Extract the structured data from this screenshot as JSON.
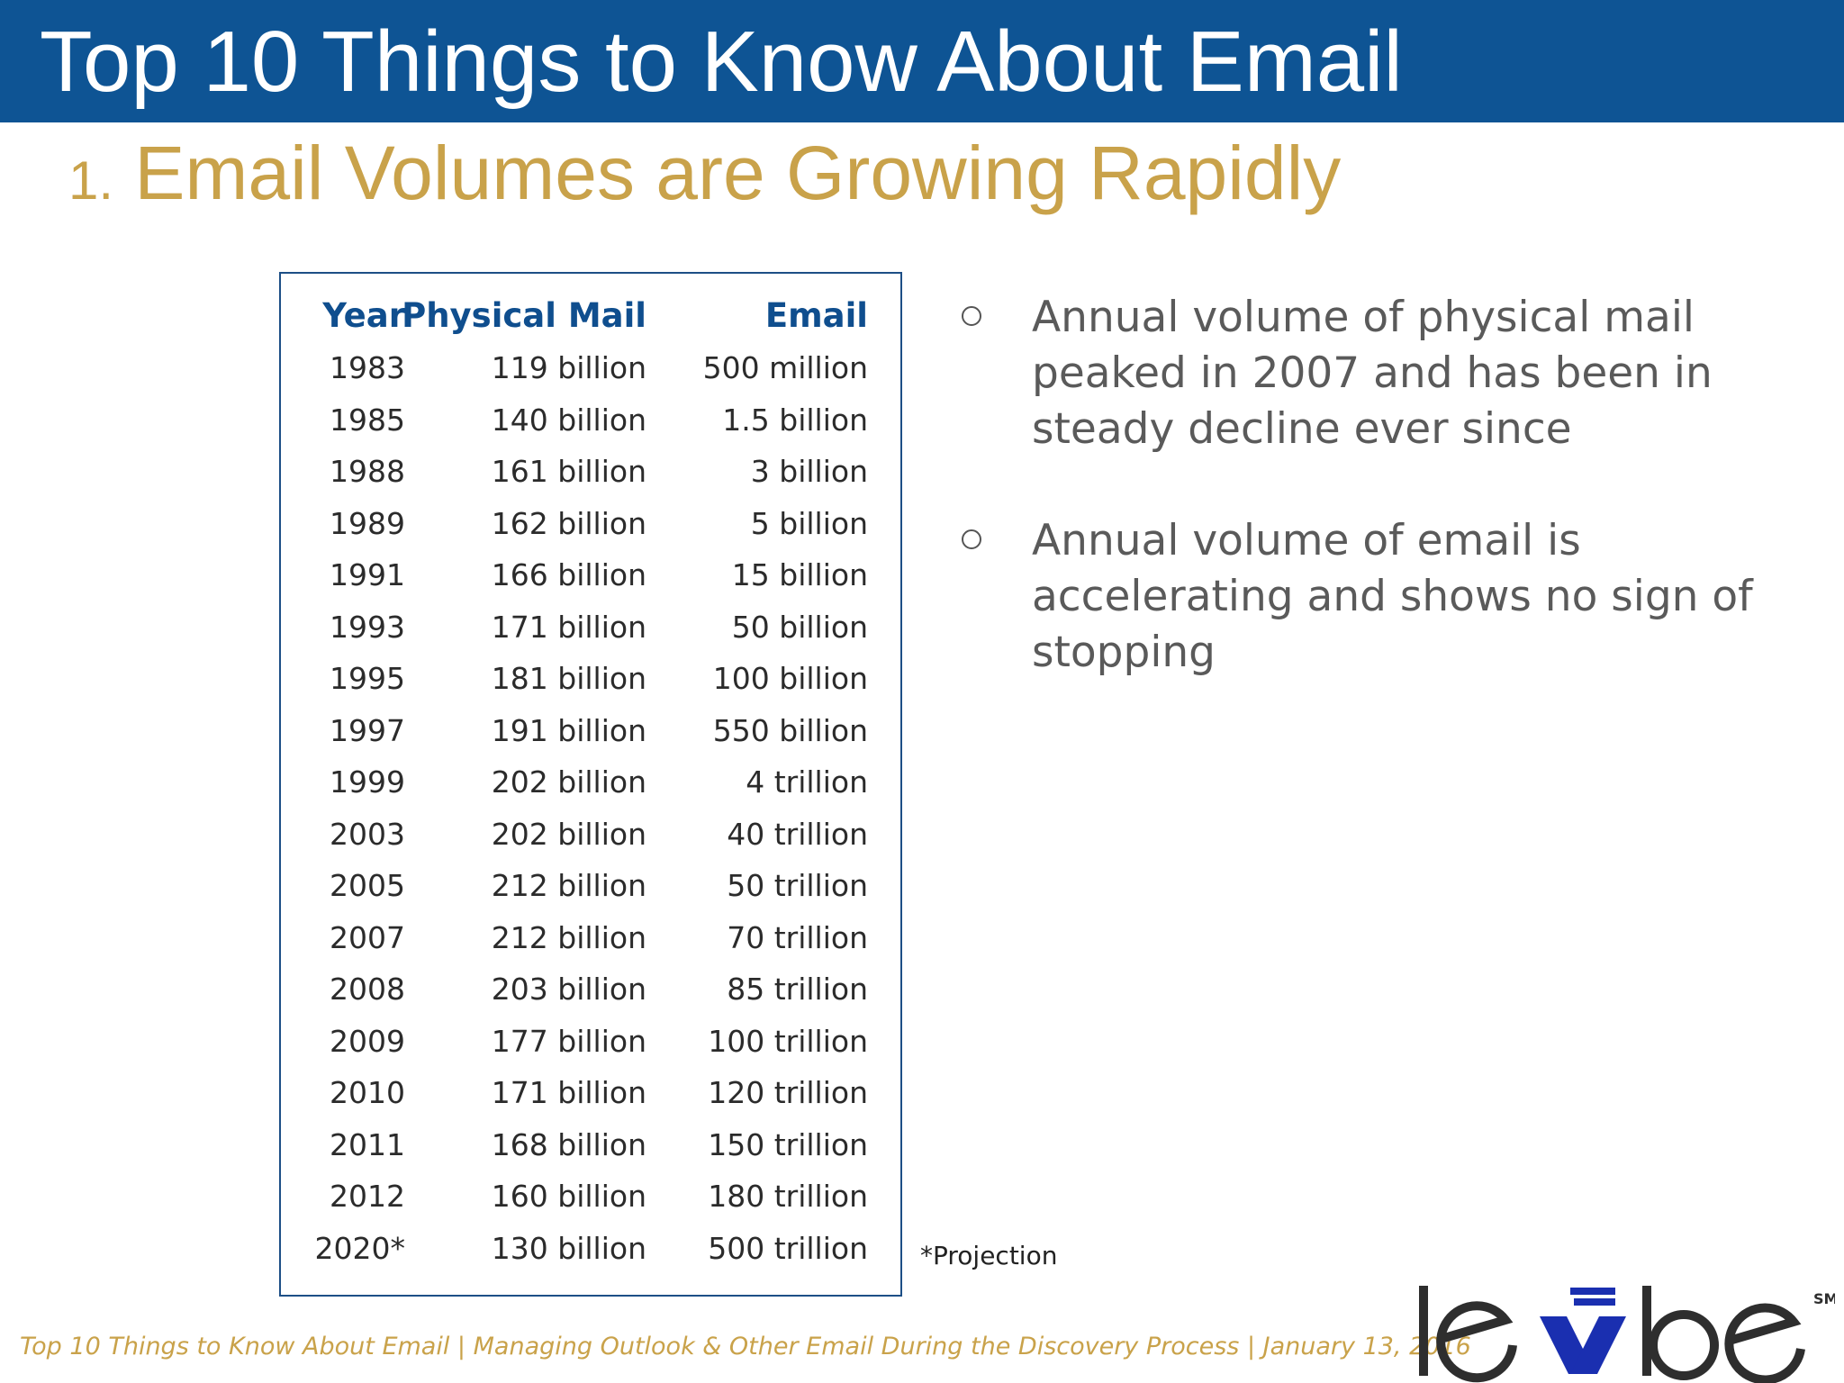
{
  "header": {
    "title": "Top 10 Things to Know About Email"
  },
  "slide": {
    "number": "1.",
    "title": "Email Volumes are Growing Rapidly"
  },
  "table": {
    "headers": {
      "year": "Year",
      "mail": "Physical Mail",
      "email": "Email"
    },
    "rows": [
      {
        "year": "1983",
        "mail": "119 billion",
        "email": "500 million"
      },
      {
        "year": "1985",
        "mail": "140 billion",
        "email": "1.5 billion"
      },
      {
        "year": "1988",
        "mail": "161 billion",
        "email": "3 billion"
      },
      {
        "year": "1989",
        "mail": "162 billion",
        "email": "5 billion"
      },
      {
        "year": "1991",
        "mail": "166 billion",
        "email": "15 billion"
      },
      {
        "year": "1993",
        "mail": "171 billion",
        "email": "50 billion"
      },
      {
        "year": "1995",
        "mail": "181 billion",
        "email": "100 billion"
      },
      {
        "year": "1997",
        "mail": "191 billion",
        "email": "550 billion"
      },
      {
        "year": "1999",
        "mail": "202 billion",
        "email": "4 trillion"
      },
      {
        "year": "2003",
        "mail": "202 billion",
        "email": "40 trillion"
      },
      {
        "year": "2005",
        "mail": "212 billion",
        "email": "50 trillion"
      },
      {
        "year": "2007",
        "mail": "212 billion",
        "email": "70 trillion"
      },
      {
        "year": "2008",
        "mail": "203 billion",
        "email": "85 trillion"
      },
      {
        "year": "2009",
        "mail": "177 billion",
        "email": "100 trillion"
      },
      {
        "year": "2010",
        "mail": "171 billion",
        "email": "120 trillion"
      },
      {
        "year": "2011",
        "mail": "168 billion",
        "email": "150 trillion"
      },
      {
        "year": "2012",
        "mail": "160 billion",
        "email": "180 trillion"
      },
      {
        "year": "2020*",
        "mail": "130 billion",
        "email": "500 trillion"
      }
    ]
  },
  "bullets": [
    "Annual volume of physical mail peaked in 2007 and has been in steady decline ever since",
    "Annual volume of email is accelerating and shows no sign of stopping"
  ],
  "footnote": "*Projection",
  "footer": "Top 10 Things to Know About Email | Managing Outlook & Other Email During the Discovery Process  | January 13, 2016",
  "logo": {
    "text": "lexbe",
    "mark": "SM"
  },
  "colors": {
    "header_bg": "#0e5494",
    "accent_gold": "#c9a24a",
    "table_head": "#0f4e8e",
    "logo_x": "#1a2fb0"
  }
}
